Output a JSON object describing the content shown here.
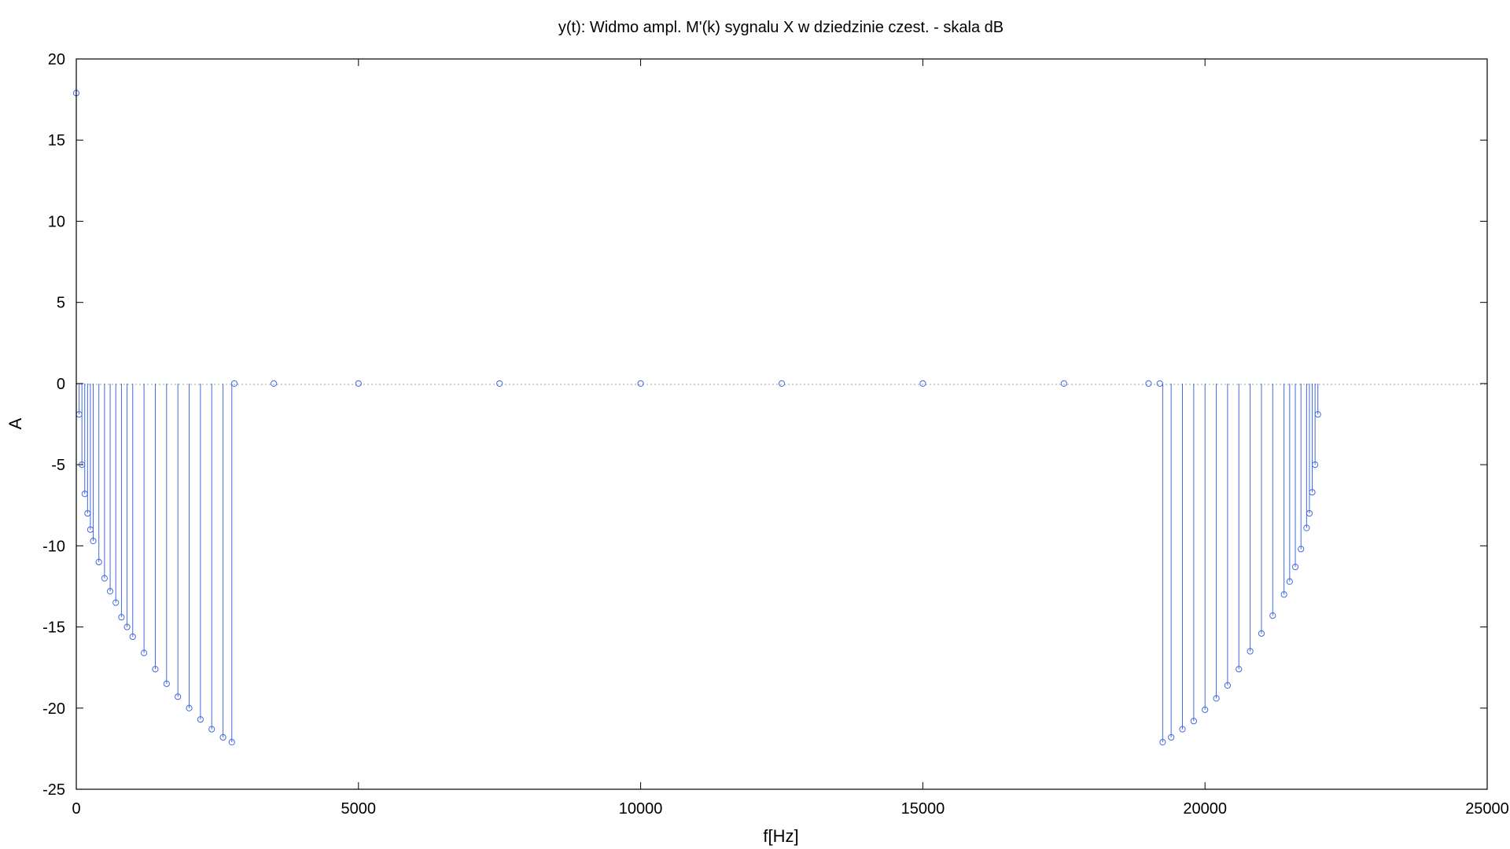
{
  "chart_data": {
    "type": "stem",
    "title": "y(t): Widmo ampl. M'(k) sygnalu X w dziedzinie czest. - skala dB",
    "xlabel": "f[Hz]",
    "ylabel": "A",
    "xlim": [
      0,
      25000
    ],
    "ylim": [
      -25,
      20
    ],
    "x_ticks": [
      0,
      5000,
      10000,
      15000,
      20000,
      25000
    ],
    "y_ticks": [
      20,
      15,
      10,
      5,
      0,
      -5,
      -10,
      -15,
      -20,
      -25
    ],
    "x_tick_labels": [
      "0",
      "5000",
      "10000",
      "15000",
      "20000",
      "25000"
    ],
    "y_tick_labels": [
      "20",
      "15",
      "10",
      "5",
      "0",
      "-5",
      "-10",
      "-15",
      "-20",
      "-25"
    ],
    "grid": false,
    "zero_line": true,
    "series": [
      {
        "color": "#4169e1",
        "x": [
          0,
          50,
          100,
          150,
          200,
          250,
          300,
          400,
          500,
          600,
          700,
          800,
          900,
          1000,
          1200,
          1400,
          1600,
          1800,
          2000,
          2200,
          2400,
          2600,
          2756,
          2800,
          3500,
          5000,
          7500,
          10000,
          12500,
          15000,
          17500,
          19000,
          19200,
          19250,
          19400,
          19600,
          19800,
          20000,
          20200,
          20400,
          20600,
          20800,
          21000,
          21200,
          21400,
          21500,
          21600,
          21700,
          21800,
          21850,
          21900,
          21950,
          22000
        ],
        "y": [
          17.9,
          -1.9,
          -5.0,
          -6.8,
          -8.0,
          -9.0,
          -9.7,
          -11.0,
          -12.0,
          -12.8,
          -13.5,
          -14.4,
          -15.0,
          -15.6,
          -16.6,
          -17.6,
          -18.5,
          -19.3,
          -20.0,
          -20.7,
          -21.3,
          -21.8,
          -22.1,
          0.0,
          0.0,
          0.0,
          0.0,
          0.0,
          0.0,
          0.0,
          0.0,
          0.0,
          0.0,
          -22.1,
          -21.8,
          -21.3,
          -20.8,
          -20.1,
          -19.4,
          -18.6,
          -17.6,
          -16.5,
          -15.4,
          -14.3,
          -13.0,
          -12.2,
          -11.3,
          -10.2,
          -8.9,
          -8.0,
          -6.7,
          -5.0,
          -1.9
        ]
      }
    ]
  }
}
